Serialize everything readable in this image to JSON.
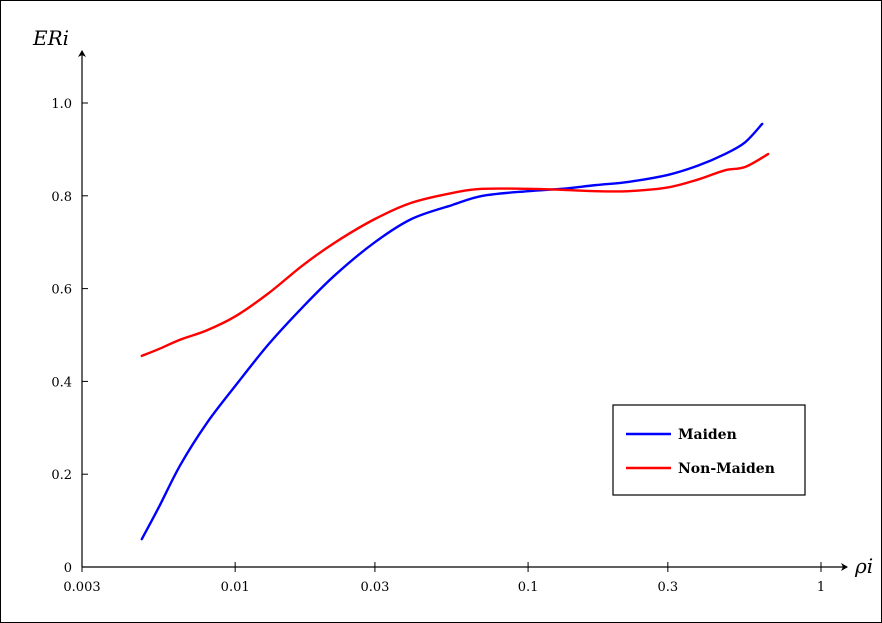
{
  "chart_data": {
    "type": "line",
    "title": "",
    "xlabel": "ρi",
    "ylabel": "ERi",
    "x_scale": "log",
    "xlim": [
      0.003,
      1
    ],
    "ylim": [
      0,
      1.0
    ],
    "x_ticks": [
      0.003,
      0.01,
      0.03,
      0.1,
      0.3,
      1
    ],
    "x_tick_labels": [
      "0.003",
      "0.01",
      "0.03",
      "0.1",
      "0.3",
      "1"
    ],
    "y_ticks": [
      0,
      0.2,
      0.4,
      0.6,
      0.8,
      1.0
    ],
    "y_tick_labels": [
      "0",
      "0.2",
      "0.4",
      "0.6",
      "0.8",
      "1.0"
    ],
    "grid": false,
    "legend_position": "bottom-right",
    "series": [
      {
        "name": "Maiden",
        "color": "#0000ff",
        "x": [
          0.0048,
          0.0055,
          0.0065,
          0.008,
          0.01,
          0.013,
          0.017,
          0.022,
          0.03,
          0.04,
          0.055,
          0.07,
          0.1,
          0.13,
          0.17,
          0.22,
          0.3,
          0.38,
          0.47,
          0.55,
          0.63
        ],
        "y": [
          0.06,
          0.13,
          0.22,
          0.31,
          0.39,
          0.48,
          0.56,
          0.63,
          0.7,
          0.75,
          0.78,
          0.8,
          0.81,
          0.815,
          0.823,
          0.83,
          0.845,
          0.865,
          0.89,
          0.915,
          0.955
        ]
      },
      {
        "name": "Non-Maiden",
        "color": "#ff0000",
        "x": [
          0.0048,
          0.0055,
          0.0065,
          0.008,
          0.01,
          0.013,
          0.017,
          0.022,
          0.03,
          0.04,
          0.055,
          0.07,
          0.1,
          0.13,
          0.17,
          0.22,
          0.3,
          0.38,
          0.47,
          0.55,
          0.66
        ],
        "y": [
          0.455,
          0.47,
          0.49,
          0.51,
          0.54,
          0.59,
          0.65,
          0.7,
          0.75,
          0.785,
          0.806,
          0.815,
          0.815,
          0.813,
          0.81,
          0.81,
          0.818,
          0.835,
          0.855,
          0.862,
          0.89
        ]
      }
    ]
  }
}
